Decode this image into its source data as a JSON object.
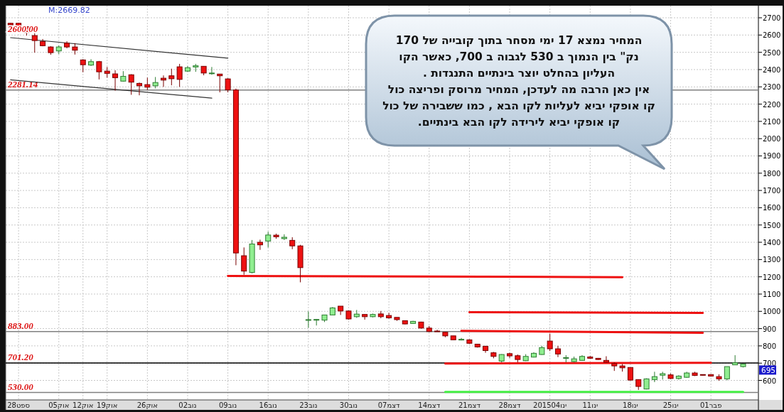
{
  "chart_data": {
    "type": "candlestick",
    "categories": [
      null,
      "28ספט",
      null,
      null,
      null,
      null,
      "05אוק",
      null,
      null,
      "12אוק",
      null,
      null,
      "19אוק",
      null,
      null,
      null,
      null,
      "26אוק",
      null,
      null,
      null,
      null,
      "02נוב",
      null,
      null,
      null,
      null,
      "09נוב",
      null,
      null,
      null,
      null,
      "16נוב",
      null,
      null,
      null,
      null,
      "23נוב",
      null,
      null,
      null,
      null,
      "30נוב",
      null,
      null,
      null,
      null,
      "07דצמ",
      null,
      null,
      null,
      null,
      "14דצמ",
      null,
      null,
      null,
      null,
      "21דצמ",
      null,
      null,
      null,
      null,
      "28דצמ",
      null,
      null,
      null,
      null,
      "201504ינו",
      null,
      null,
      null,
      null,
      "11ינו",
      null,
      null,
      null,
      null,
      "18ינו",
      null,
      null,
      null,
      null,
      "25ינו",
      null,
      null,
      null,
      null,
      "01פבר",
      null,
      null,
      null,
      null
    ],
    "ohlc": [
      [
        2668,
        2670,
        2655,
        2659
      ],
      [
        2668,
        2670,
        2640,
        2646
      ],
      [
        2648,
        2650,
        2597,
        2615
      ],
      [
        2597,
        2611,
        2498,
        2568
      ],
      [
        2563,
        2577,
        2535,
        2538
      ],
      [
        2531,
        2535,
        2486,
        2498
      ],
      [
        2508,
        2540,
        2490,
        2531
      ],
      [
        2553,
        2564,
        2523,
        2531
      ],
      [
        2531,
        2553,
        2487,
        2512
      ],
      [
        2456,
        2460,
        2385,
        2428
      ],
      [
        2426,
        2460,
        2421,
        2446
      ],
      [
        2446,
        2450,
        2343,
        2387
      ],
      [
        2391,
        2415,
        2353,
        2378
      ],
      [
        2375,
        2396,
        2278,
        2353
      ],
      [
        2333,
        2391,
        2330,
        2361
      ],
      [
        2370,
        2373,
        2254,
        2327
      ],
      [
        2320,
        2325,
        2251,
        2306
      ],
      [
        2313,
        2353,
        2282,
        2298
      ],
      [
        2306,
        2357,
        2291,
        2325
      ],
      [
        2350,
        2366,
        2300,
        2339
      ],
      [
        2364,
        2405,
        2309,
        2347
      ],
      [
        2416,
        2433,
        2300,
        2343
      ],
      [
        2391,
        2420,
        2387,
        2411
      ],
      [
        2415,
        2433,
        2387,
        2422
      ],
      [
        2419,
        2420,
        2367,
        2380
      ],
      [
        2377,
        2415,
        2370,
        2380
      ],
      [
        2374,
        2374,
        2268,
        2364
      ],
      [
        2346,
        2350,
        2268,
        2282
      ],
      [
        2282,
        2290,
        1267,
        1338
      ],
      [
        1322,
        1370,
        1212,
        1233
      ],
      [
        1225,
        1413,
        1220,
        1390
      ],
      [
        1400,
        1415,
        1356,
        1385
      ],
      [
        1407,
        1461,
        1370,
        1442
      ],
      [
        1441,
        1450,
        1420,
        1432
      ],
      [
        1421,
        1446,
        1413,
        1429
      ],
      [
        1411,
        1429,
        1360,
        1379
      ],
      [
        1379,
        1385,
        1168,
        1253
      ],
      [
        950,
        1000,
        905,
        952
      ],
      [
        950,
        956,
        918,
        953
      ],
      [
        949,
        979,
        938,
        979
      ],
      [
        979,
        1025,
        979,
        1020
      ],
      [
        1030,
        1030,
        979,
        1002
      ],
      [
        1002,
        1005,
        952,
        956
      ],
      [
        969,
        1008,
        962,
        984
      ],
      [
        982,
        982,
        952,
        969
      ],
      [
        969,
        987,
        965,
        982
      ],
      [
        985,
        1002,
        960,
        969
      ],
      [
        976,
        991,
        958,
        962
      ],
      [
        965,
        965,
        945,
        952
      ],
      [
        946,
        946,
        925,
        927
      ],
      [
        930,
        945,
        928,
        942
      ],
      [
        938,
        940,
        900,
        903
      ],
      [
        903,
        915,
        880,
        883
      ],
      [
        886,
        893,
        883,
        885
      ],
      [
        879,
        880,
        850,
        858
      ],
      [
        858,
        858,
        835,
        835
      ],
      [
        834,
        846,
        832,
        838
      ],
      [
        835,
        838,
        812,
        815
      ],
      [
        810,
        810,
        790,
        794
      ],
      [
        798,
        800,
        760,
        773
      ],
      [
        760,
        765,
        728,
        739
      ],
      [
        712,
        752,
        705,
        750
      ],
      [
        755,
        760,
        730,
        742
      ],
      [
        743,
        750,
        705,
        721
      ],
      [
        714,
        752,
        712,
        739
      ],
      [
        735,
        763,
        733,
        757
      ],
      [
        750,
        800,
        748,
        790
      ],
      [
        828,
        870,
        770,
        783
      ],
      [
        783,
        800,
        735,
        753
      ],
      [
        728,
        746,
        705,
        732
      ],
      [
        709,
        738,
        705,
        725
      ],
      [
        716,
        746,
        714,
        739
      ],
      [
        736,
        741,
        725,
        728
      ],
      [
        728,
        730,
        719,
        721
      ],
      [
        716,
        740,
        703,
        705
      ],
      [
        698,
        705,
        655,
        684
      ],
      [
        684,
        695,
        651,
        673
      ],
      [
        675,
        675,
        598,
        602
      ],
      [
        605,
        605,
        545,
        565
      ],
      [
        550,
        612,
        548,
        609
      ],
      [
        605,
        650,
        590,
        622
      ],
      [
        630,
        650,
        605,
        639
      ],
      [
        632,
        640,
        608,
        611
      ],
      [
        611,
        630,
        605,
        625
      ],
      [
        618,
        650,
        615,
        643
      ],
      [
        643,
        650,
        625,
        629
      ],
      [
        634,
        634,
        628,
        630
      ],
      [
        634,
        636,
        622,
        625
      ],
      [
        622,
        635,
        598,
        609
      ],
      [
        609,
        680,
        600,
        680
      ],
      [
        690,
        746,
        690,
        702
      ],
      [
        680,
        697,
        675,
        695
      ]
    ],
    "series": [
      {
        "type": "line",
        "color": "#333333",
        "values": [
          2585,
          null,
          null,
          null,
          null,
          null,
          null,
          null,
          null,
          null,
          null,
          null,
          null,
          null,
          null,
          null,
          null,
          null,
          null,
          null,
          null,
          null,
          null,
          null,
          null,
          null,
          null,
          2466,
          null,
          null,
          null,
          null,
          null,
          null,
          null,
          null,
          null,
          null,
          null,
          null,
          null,
          null,
          null,
          null,
          null,
          null,
          null,
          null,
          null,
          null,
          null,
          null,
          null,
          null,
          null,
          null,
          null,
          null,
          null,
          null,
          null,
          null,
          null,
          null,
          null,
          null,
          null,
          null,
          null,
          null,
          null,
          null,
          null,
          null,
          null,
          null,
          null,
          null,
          null,
          null,
          null,
          null,
          null,
          null,
          null,
          null,
          null,
          null,
          null,
          null,
          null,
          null
        ]
      },
      {
        "type": "line",
        "color": "#333333",
        "values": [
          2341,
          null,
          null,
          null,
          null,
          null,
          null,
          null,
          null,
          null,
          null,
          null,
          null,
          null,
          null,
          null,
          null,
          null,
          null,
          null,
          null,
          null,
          null,
          null,
          null,
          2235,
          null,
          null,
          null,
          null,
          null,
          null,
          null,
          null,
          null,
          null,
          null,
          null,
          null,
          null,
          null,
          null,
          null,
          null,
          null,
          null,
          null,
          null,
          null,
          null,
          null,
          null,
          null,
          null,
          null,
          null,
          null,
          null,
          null,
          null,
          null,
          null,
          null,
          null,
          null,
          null,
          null,
          null,
          null,
          null,
          null,
          null,
          null,
          null,
          null,
          null,
          null,
          null,
          null,
          null,
          null,
          null,
          null,
          null,
          null,
          null,
          null,
          null,
          null,
          null,
          null,
          null
        ]
      },
      {
        "type": "line",
        "color": "#ee1111",
        "values": [
          null,
          null,
          null,
          null,
          null,
          null,
          null,
          null,
          null,
          null,
          null,
          null,
          null,
          null,
          null,
          null,
          null,
          null,
          null,
          null,
          null,
          null,
          null,
          null,
          null,
          null,
          null,
          1205,
          null,
          null,
          null,
          null,
          null,
          null,
          null,
          null,
          null,
          null,
          null,
          null,
          null,
          null,
          null,
          null,
          null,
          null,
          null,
          null,
          null,
          null,
          null,
          null,
          null,
          null,
          null,
          null,
          null,
          null,
          null,
          null,
          null,
          null,
          null,
          null,
          null,
          null,
          null,
          null,
          null,
          null,
          null,
          null,
          null,
          null,
          null,
          null,
          1198,
          null,
          null,
          null,
          null,
          null,
          null,
          null,
          null,
          null,
          null,
          null,
          null,
          null,
          null,
          null
        ]
      },
      {
        "type": "line",
        "color": "#ee1111",
        "values": [
          null,
          null,
          null,
          null,
          null,
          null,
          null,
          null,
          null,
          null,
          null,
          null,
          null,
          null,
          null,
          null,
          null,
          null,
          null,
          null,
          null,
          null,
          null,
          null,
          null,
          null,
          null,
          null,
          null,
          null,
          null,
          null,
          null,
          null,
          null,
          null,
          null,
          null,
          null,
          null,
          null,
          null,
          null,
          null,
          null,
          null,
          null,
          null,
          null,
          null,
          null,
          null,
          null,
          null,
          null,
          null,
          null,
          995,
          null,
          null,
          null,
          null,
          null,
          null,
          null,
          null,
          null,
          null,
          null,
          null,
          null,
          null,
          null,
          null,
          null,
          null,
          null,
          null,
          null,
          null,
          null,
          null,
          null,
          null,
          null,
          null,
          991,
          null,
          null,
          null,
          null,
          null
        ]
      },
      {
        "type": "line",
        "color": "#ee1111",
        "values": [
          null,
          null,
          null,
          null,
          null,
          null,
          null,
          null,
          null,
          null,
          null,
          null,
          null,
          null,
          null,
          null,
          null,
          null,
          null,
          null,
          null,
          null,
          null,
          null,
          null,
          null,
          null,
          null,
          null,
          null,
          null,
          null,
          null,
          null,
          null,
          null,
          null,
          null,
          null,
          null,
          null,
          null,
          null,
          null,
          null,
          null,
          null,
          null,
          null,
          null,
          null,
          null,
          null,
          null,
          null,
          null,
          887,
          null,
          null,
          null,
          null,
          null,
          null,
          null,
          null,
          null,
          null,
          null,
          null,
          null,
          null,
          null,
          null,
          null,
          null,
          null,
          null,
          null,
          null,
          null,
          null,
          null,
          null,
          null,
          null,
          null,
          876,
          null,
          null,
          null,
          null,
          null
        ]
      },
      {
        "type": "line",
        "color": "#ee1111",
        "values": [
          null,
          null,
          null,
          null,
          null,
          null,
          null,
          null,
          null,
          null,
          null,
          null,
          null,
          null,
          null,
          null,
          null,
          null,
          null,
          null,
          null,
          null,
          null,
          null,
          null,
          null,
          null,
          null,
          null,
          null,
          null,
          null,
          null,
          null,
          null,
          null,
          null,
          null,
          null,
          null,
          null,
          null,
          null,
          null,
          null,
          null,
          null,
          null,
          null,
          null,
          null,
          null,
          null,
          null,
          698,
          null,
          null,
          null,
          null,
          null,
          null,
          null,
          null,
          null,
          null,
          null,
          null,
          null,
          null,
          null,
          null,
          null,
          null,
          null,
          null,
          null,
          null,
          null,
          null,
          null,
          null,
          null,
          null,
          null,
          null,
          null,
          null,
          702,
          null,
          null,
          null,
          null
        ]
      },
      {
        "type": "line",
        "color": "#44ee44",
        "values": [
          null,
          null,
          null,
          null,
          null,
          null,
          null,
          null,
          null,
          null,
          null,
          null,
          null,
          null,
          null,
          null,
          null,
          null,
          null,
          null,
          null,
          null,
          null,
          null,
          null,
          null,
          null,
          null,
          null,
          null,
          null,
          null,
          null,
          null,
          null,
          null,
          null,
          null,
          null,
          null,
          null,
          null,
          null,
          null,
          null,
          null,
          null,
          null,
          null,
          null,
          null,
          null,
          null,
          null,
          533,
          null,
          null,
          null,
          null,
          null,
          null,
          null,
          null,
          null,
          null,
          null,
          null,
          null,
          null,
          null,
          null,
          null,
          null,
          null,
          null,
          null,
          null,
          null,
          null,
          null,
          null,
          null,
          null,
          null,
          null,
          null,
          null,
          null,
          null,
          null,
          null,
          533
        ]
      }
    ],
    "ylim": [
      487,
      2770
    ],
    "yticks": [
      600,
      700,
      800,
      900,
      1000,
      1100,
      1200,
      1300,
      1400,
      1500,
      1600,
      1700,
      1800,
      1900,
      2000,
      2100,
      2200,
      2300,
      2400,
      2500,
      2600,
      2700
    ],
    "grid": true,
    "ref_lines": [
      {
        "axis": "y",
        "value": 2281.14,
        "label": "2281.14",
        "color": "#808080"
      },
      {
        "axis": "y",
        "value": 883,
        "label": "883.00",
        "color": "#808080"
      },
      {
        "axis": "y",
        "value": 701.2,
        "label": "701.20",
        "color": "#000000"
      },
      {
        "axis": "y",
        "value": 530,
        "label": "530.00",
        "color": "#808080"
      }
    ],
    "annotations": [
      "M:2669.82",
      {
        "text": "2600.00",
        "y": 2600
      },
      "המחיר נמצא 17 ימי מסחר בתוך קובייה של 170\nנק\" בין הנמוך ב 530 לגבוה ב 700, כאשר הקו\nהעליון בהחלט יוצר בינתיים התנגדות .\nאין כאן הרבה מה לעדכן, המחיר מרוסק ופריצה כול\nקו אופקי יביא לעליות לקו הבא , כמו ששבירה של כול\nקו אופקי יביא לירידה לקו הבא בינתיים.",
      "695"
    ]
  }
}
